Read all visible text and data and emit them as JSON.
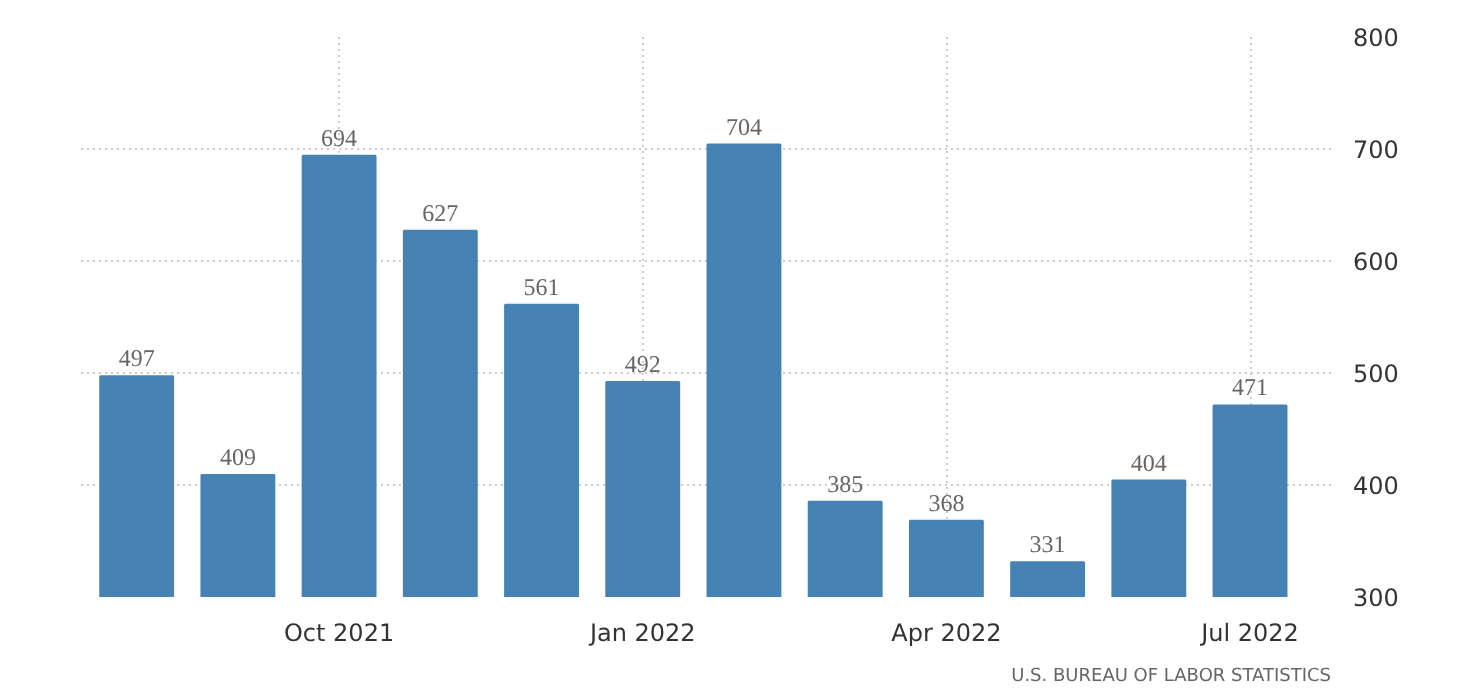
{
  "chart_data": {
    "type": "bar",
    "categories": [
      null,
      null,
      "Oct 2021",
      null,
      null,
      "Jan 2022",
      null,
      null,
      "Apr 2022",
      null,
      null,
      "Jul 2022"
    ],
    "values": [
      497,
      409,
      694,
      627,
      561,
      492,
      704,
      385,
      368,
      331,
      404,
      471
    ],
    "color": "#4682b4",
    "ylim": [
      300,
      800
    ],
    "yticks": [
      300,
      400,
      500,
      600,
      700,
      800
    ],
    "grid": true,
    "data_labels": true,
    "annotations": [
      "U.S. BUREAU OF LABOR STATISTICS"
    ]
  }
}
